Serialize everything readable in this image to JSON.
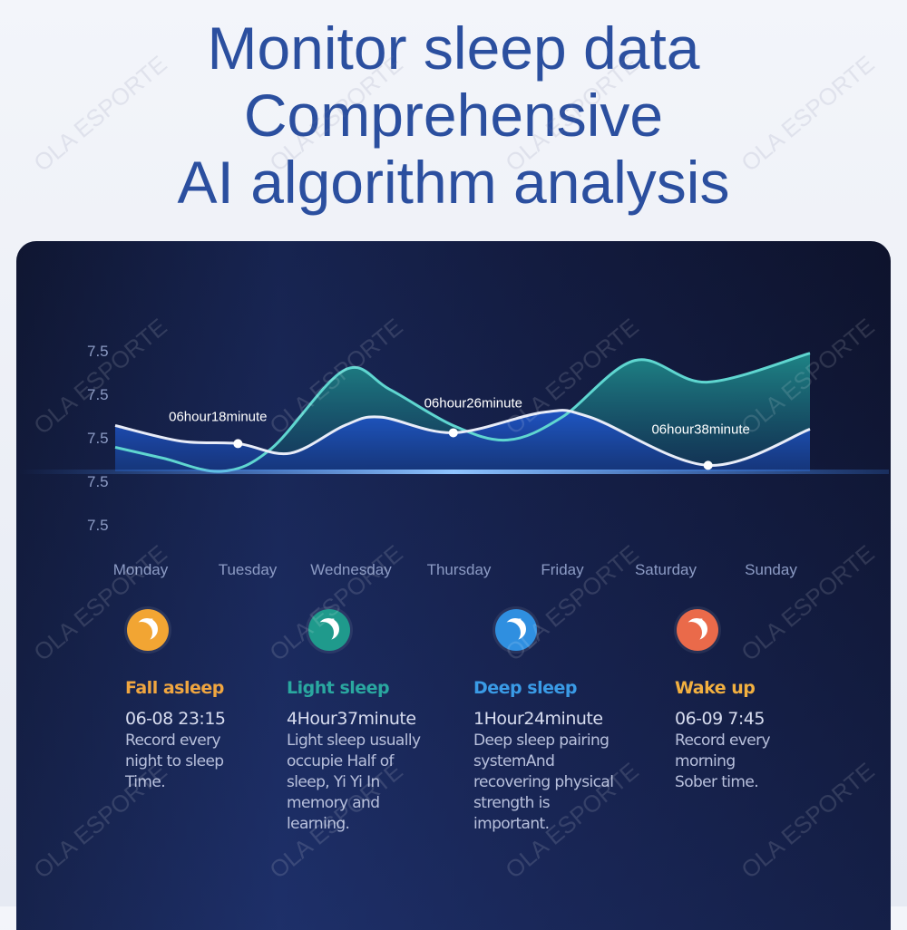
{
  "title_lines": [
    "Monitor sleep data",
    "Comprehensive",
    "AI algorithm analysis"
  ],
  "watermark": "OLA ESPORTE",
  "colors": {
    "title": "#2b4f9f",
    "teal_series": "#5fd6d0",
    "white_series": "#e8ecf8",
    "baseline": "#3f8cff",
    "fall_asleep": "#f2a533",
    "light_sleep": "#1f9a8c",
    "deep_sleep": "#2f8fe0",
    "wake_up": "#ea6a4a"
  },
  "chart_data": {
    "type": "area",
    "y_tick_labels": [
      "7.5",
      "7.5",
      "7.5",
      "7.5",
      "7.5"
    ],
    "categories": [
      "Monday",
      "Tuesday",
      "Wednesday",
      "Thursday",
      "Friday",
      "Saturday",
      "Sunday"
    ],
    "grid": false,
    "series": [
      {
        "color": "teal",
        "x": [
          0,
          0.41,
          0.92,
          1.35,
          1.98,
          2.37,
          2.92,
          3.39,
          3.86,
          4.49,
          5.11,
          6
        ],
        "y": [
          2.0,
          1.1,
          0,
          1.9,
          8.4,
          6.8,
          3.8,
          2.6,
          4.5,
          9.2,
          7.4,
          9.8
        ]
      },
      {
        "color": "white",
        "x": [
          0,
          0.57,
          1.06,
          1.51,
          1.98,
          2.29,
          2.92,
          3.7,
          4.1,
          5.12,
          6
        ],
        "y": [
          3.8,
          2.5,
          2.3,
          1.5,
          3.8,
          4.5,
          3.2,
          4.9,
          4.5,
          0.5,
          3.5
        ]
      }
    ],
    "annotations": [
      {
        "x": 1.06,
        "y": 2.3,
        "label": "06hour18minute"
      },
      {
        "x": 2.92,
        "y": 3.2,
        "label": "06hour26minute"
      },
      {
        "x": 5.12,
        "y": 0.5,
        "label": "06hour38minute"
      }
    ]
  },
  "cards": [
    {
      "label": "Fall asleep",
      "value": "06-08 23:15",
      "desc": "Record every\nnight to sleep\nTime.",
      "color": "#f2a533",
      "label_color": "#f0a640"
    },
    {
      "label": "Light sleep",
      "value": "4Hour37minute",
      "desc": "Light sleep usually\noccupie Half of\nsleep, Yi Yi In\nmemory and\nlearning.",
      "color": "#1f9a8c",
      "label_color": "#2aa8a0"
    },
    {
      "label": "Deep sleep",
      "value": "1Hour24minute",
      "desc": "Deep sleep pairing\nsystemAnd\nrecovering physical\n strength is\nimportant.",
      "color": "#2f8fe0",
      "label_color": "#3a9be6"
    },
    {
      "label": "Wake up",
      "value": "06-09 7:45",
      "desc": "Record every\nmorning\nSober time.",
      "color": "#ea6a4a",
      "label_color": "#f2b040"
    }
  ]
}
